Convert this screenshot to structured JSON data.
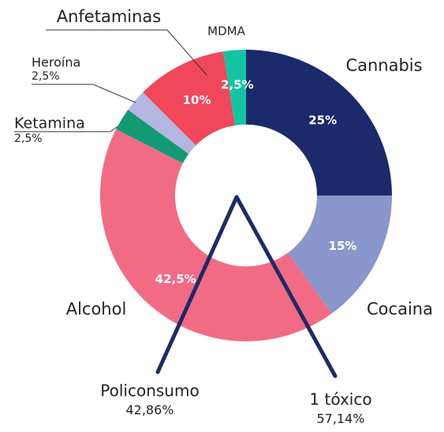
{
  "chart_data": {
    "type": "donut",
    "categories": [
      "Cannabis",
      "Cocaina",
      "Alcohol",
      "Ketamina",
      "Heroína",
      "Anfetaminas",
      "MDMA"
    ],
    "values": [
      25,
      15,
      42.5,
      2.5,
      2.5,
      10,
      2.5
    ],
    "value_labels": [
      "25%",
      "15%",
      "42,5%",
      "2,5%",
      "2,5%",
      "10%",
      "2,5%"
    ],
    "colors": [
      "#1b2a6b",
      "#8a97cc",
      "#f26b85",
      "#149a72",
      "#b4b6e2",
      "#f0475a",
      "#13c4a3"
    ],
    "annotations": [
      {
        "text": "Policonsumo",
        "value": 42.86,
        "value_label": "42,86%"
      },
      {
        "text": "1 tóxico",
        "value": 57.14,
        "value_label": "57,14%"
      }
    ]
  }
}
